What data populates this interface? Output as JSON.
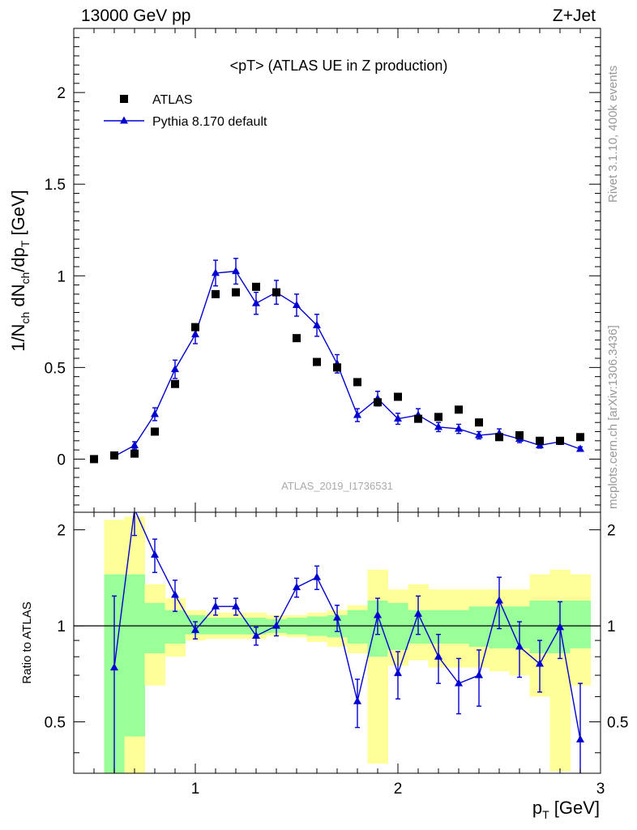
{
  "header": {
    "energy_label": "13000 GeV pp",
    "process_label": "Z+Jet",
    "plot_title": "<pT> (ATLAS UE in Z production)",
    "watermark": "ATLAS_2019_I1736531",
    "rivet_label": "Rivet 3.1.10,  400k events",
    "mcplots_label": "mcplots.cern.ch [arXiv:1306.3436]"
  },
  "colors": {
    "data": "#000000",
    "mc": "#0000d0",
    "band_inner": "#99ff99",
    "band_outer": "#ffff99"
  },
  "chart_data": [
    {
      "type": "scatter",
      "title": "<pT> (ATLAS UE in Z production)",
      "ylabel": "1/N_ch dN_ch/dp_T [GeV]",
      "xlabel": "p_T [GeV]",
      "xlim": [
        0.4,
        3.0
      ],
      "ylim": [
        -0.29,
        2.35
      ],
      "yticks": [
        0,
        0.5,
        1,
        1.5,
        2
      ],
      "xticks": [
        1,
        2,
        3
      ],
      "legend_position": "top-left",
      "series": [
        {
          "name": "ATLAS",
          "marker": "square",
          "x": [
            0.5,
            0.6,
            0.7,
            0.8,
            0.9,
            1.0,
            1.1,
            1.2,
            1.3,
            1.4,
            1.5,
            1.6,
            1.7,
            1.8,
            1.9,
            2.0,
            2.1,
            2.2,
            2.3,
            2.4,
            2.5,
            2.6,
            2.7,
            2.8,
            2.9
          ],
          "y": [
            0.0,
            0.02,
            0.03,
            0.15,
            0.41,
            0.72,
            0.9,
            0.91,
            0.94,
            0.91,
            0.66,
            0.53,
            0.5,
            0.42,
            0.31,
            0.34,
            0.22,
            0.23,
            0.27,
            0.2,
            0.12,
            0.13,
            0.1,
            0.1,
            0.12
          ]
        },
        {
          "name": "Pythia 8.170 default",
          "marker": "triangle",
          "x": [
            0.6,
            0.7,
            0.8,
            0.9,
            1.0,
            1.1,
            1.2,
            1.3,
            1.4,
            1.5,
            1.6,
            1.7,
            1.8,
            1.9,
            2.0,
            2.1,
            2.2,
            2.3,
            2.4,
            2.5,
            2.6,
            2.7,
            2.8,
            2.9
          ],
          "y": [
            0.015,
            0.075,
            0.245,
            0.49,
            0.68,
            1.015,
            1.025,
            0.85,
            0.91,
            0.84,
            0.73,
            0.52,
            0.24,
            0.33,
            0.22,
            0.24,
            0.175,
            0.165,
            0.13,
            0.14,
            0.11,
            0.075,
            0.095,
            0.055
          ],
          "yerr": [
            0.01,
            0.02,
            0.035,
            0.05,
            0.05,
            0.07,
            0.07,
            0.06,
            0.065,
            0.06,
            0.06,
            0.05,
            0.035,
            0.04,
            0.03,
            0.035,
            0.025,
            0.025,
            0.02,
            0.025,
            0.02,
            0.015,
            0.015,
            0.012
          ]
        }
      ]
    },
    {
      "type": "line",
      "ylabel": "Ratio to ATLAS",
      "xlabel": "p_T [GeV]",
      "xlim": [
        0.4,
        3.0
      ],
      "ylim": [
        0.345,
        2.27
      ],
      "yscale": "log",
      "yticks": [
        0.5,
        1,
        2
      ],
      "reference_line": 1,
      "bands": {
        "x_edges": [
          0.55,
          0.65,
          0.75,
          0.85,
          0.95,
          1.05,
          1.15,
          1.25,
          1.35,
          1.45,
          1.55,
          1.65,
          1.75,
          1.85,
          1.95,
          2.05,
          2.15,
          2.25,
          2.35,
          2.45,
          2.55,
          2.65,
          2.75,
          2.85,
          2.95
        ],
        "inner_upper": [
          1.45,
          1.45,
          1.18,
          1.12,
          1.08,
          1.06,
          1.06,
          1.06,
          1.05,
          1.06,
          1.07,
          1.08,
          1.12,
          1.2,
          1.18,
          1.12,
          1.12,
          1.12,
          1.15,
          1.15,
          1.15,
          1.2,
          1.2,
          1.2
        ],
        "inner_lower": [
          0.3,
          0.45,
          0.82,
          0.88,
          0.94,
          0.94,
          0.94,
          0.94,
          0.95,
          0.94,
          0.93,
          0.92,
          0.88,
          0.8,
          0.84,
          0.88,
          0.88,
          0.88,
          0.86,
          0.85,
          0.85,
          0.82,
          0.82,
          0.85
        ],
        "outer_upper": [
          2.15,
          2.2,
          1.35,
          1.22,
          1.12,
          1.1,
          1.1,
          1.1,
          1.08,
          1.08,
          1.1,
          1.12,
          1.16,
          1.5,
          1.3,
          1.35,
          1.3,
          1.3,
          1.3,
          1.3,
          1.3,
          1.45,
          1.5,
          1.45
        ],
        "outer_lower": [
          0.2,
          0.3,
          0.65,
          0.8,
          0.9,
          0.91,
          0.91,
          0.91,
          0.93,
          0.92,
          0.89,
          0.86,
          0.82,
          0.37,
          0.75,
          0.78,
          0.74,
          0.74,
          0.74,
          0.72,
          0.7,
          0.6,
          0.35,
          0.65
        ]
      },
      "series": [
        {
          "name": "Pythia 8.170 default",
          "marker": "triangle",
          "x": [
            0.6,
            0.7,
            0.8,
            0.9,
            1.0,
            1.1,
            1.2,
            1.3,
            1.4,
            1.5,
            1.6,
            1.7,
            1.8,
            1.9,
            2.0,
            2.1,
            2.2,
            2.3,
            2.4,
            2.5,
            2.6,
            2.7,
            2.8,
            2.9
          ],
          "y": [
            0.74,
            2.32,
            1.67,
            1.25,
            0.97,
            1.15,
            1.15,
            0.93,
            1.0,
            1.32,
            1.42,
            1.06,
            0.58,
            1.08,
            0.71,
            1.09,
            0.8,
            0.66,
            0.7,
            1.2,
            0.86,
            0.76,
            0.99,
            0.44
          ],
          "yerr": [
            0.5,
            0.4,
            0.2,
            0.14,
            0.06,
            0.07,
            0.07,
            0.06,
            0.07,
            0.09,
            0.12,
            0.1,
            0.1,
            0.14,
            0.12,
            0.15,
            0.14,
            0.13,
            0.14,
            0.22,
            0.17,
            0.14,
            0.2,
            0.22
          ]
        }
      ]
    }
  ]
}
